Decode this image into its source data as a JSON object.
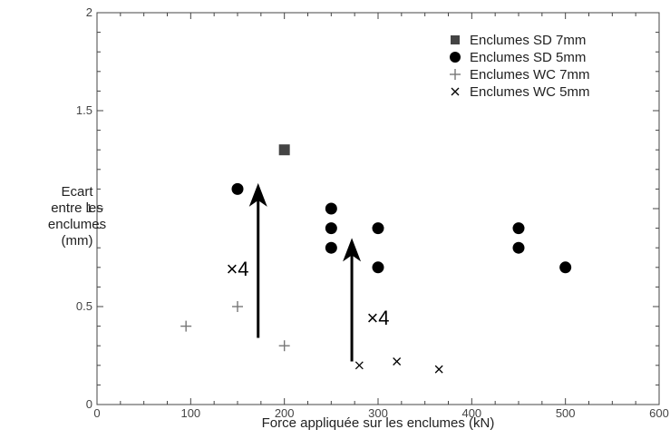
{
  "chart_data": {
    "type": "scatter",
    "xlabel": "Force appliquée sur les enclumes (kN)",
    "ylabel_lines": [
      "Ecart",
      "entre les",
      "enclumes",
      "(mm)"
    ],
    "xlim": [
      0,
      600
    ],
    "ylim": [
      0,
      2
    ],
    "x_ticks": [
      0,
      100,
      200,
      300,
      400,
      500,
      600
    ],
    "y_ticks": [
      0,
      0.5,
      1,
      1.5,
      2
    ],
    "y_tick_labels": [
      "0",
      "0.5",
      "1",
      "1.5",
      "2"
    ],
    "grid": false,
    "legend_position": "top-right",
    "series": [
      {
        "name": "Enclumes SD 7mm",
        "marker": "square",
        "color": "#444444",
        "points": [
          [
            200,
            1.3
          ]
        ]
      },
      {
        "name": "Enclumes SD 5mm",
        "marker": "circle",
        "color": "#000000",
        "points": [
          [
            150,
            1.1
          ],
          [
            250,
            1.0
          ],
          [
            250,
            0.9
          ],
          [
            250,
            0.8
          ],
          [
            300,
            0.9
          ],
          [
            300,
            0.7
          ],
          [
            450,
            0.9
          ],
          [
            450,
            0.8
          ],
          [
            500,
            0.7
          ]
        ]
      },
      {
        "name": "Enclumes WC 7mm",
        "marker": "plus",
        "color": "#777777",
        "points": [
          [
            95,
            0.4
          ],
          [
            150,
            0.5
          ],
          [
            200,
            0.3
          ]
        ]
      },
      {
        "name": "Enclumes WC 5mm",
        "marker": "x",
        "color": "#000000",
        "points": [
          [
            280,
            0.2
          ],
          [
            320,
            0.22
          ],
          [
            365,
            0.18
          ]
        ]
      }
    ],
    "annotations": [
      {
        "type": "arrow",
        "from": [
          172,
          0.34
        ],
        "to": [
          172,
          1.13
        ]
      },
      {
        "type": "arrow",
        "from": [
          272,
          0.22
        ],
        "to": [
          272,
          0.85
        ]
      },
      {
        "type": "text",
        "text": "×4",
        "at": [
          150,
          0.69
        ]
      },
      {
        "type": "text",
        "text": "×4",
        "at": [
          300,
          0.44
        ]
      }
    ]
  }
}
